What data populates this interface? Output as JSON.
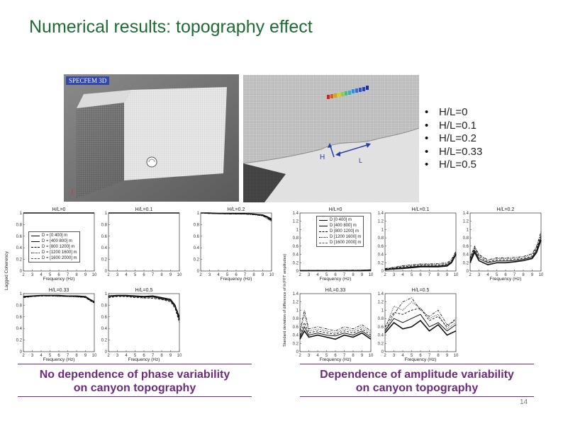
{
  "slide": {
    "title": "Numerical results: topography effect",
    "page_number": "14"
  },
  "mesh_left": {
    "software_label": "SPECFEM 3D"
  },
  "mesh_right": {
    "h_label": "H",
    "l_label": "L"
  },
  "bullets": [
    "H/L=0",
    "H/L=0.1",
    "H/L=0.2",
    "H/L=0.33",
    "H/L=0.5"
  ],
  "captions": {
    "left": [
      "No dependence of phase variability",
      "on canyon topography"
    ],
    "right": [
      "Dependence of amplitude variability",
      "on canyon topography"
    ]
  },
  "coherency_group": {
    "ylabel": "Lagged Coherency",
    "legend": [
      "D = [0 400] m",
      "D = [400 800] m",
      "D = [800 1200] m",
      "D = [1200 1600] m",
      "D = [1600 2000] m"
    ]
  },
  "amplitude_group": {
    "ylabel": "Standard deviation of difference of ln(FFT amplitudes)",
    "legend": [
      "D [0 400] m",
      "D [400 800] m",
      "D [800 1200] m",
      "D [1200 1600] m",
      "D [1600 2000] m"
    ]
  },
  "chart_data": [
    {
      "type": "line",
      "title": "H/L=0",
      "xlabel": "Frequency (Hz)",
      "ylabel": "Lagged Coherency",
      "x": [
        2,
        3,
        4,
        5,
        6,
        7,
        8,
        9,
        10
      ],
      "xlim": [
        2,
        10
      ],
      "ylim": [
        0,
        1
      ],
      "xticks": [
        "2",
        "3",
        "4",
        "5",
        "6",
        "7",
        "8",
        "9",
        "10"
      ],
      "yticks": [
        "0",
        "0.2",
        "0.4",
        "0.6",
        "0.8",
        "1"
      ],
      "series": [
        {
          "name": "D = [0 400] m",
          "values": [
            1,
            1,
            1,
            1,
            1,
            1,
            1,
            1,
            1
          ]
        },
        {
          "name": "D = [400 800] m",
          "values": [
            1,
            1,
            1,
            1,
            1,
            1,
            1,
            1,
            1
          ]
        },
        {
          "name": "D = [800 1200] m",
          "values": [
            1,
            1,
            1,
            1,
            1,
            1,
            1,
            1,
            1
          ]
        },
        {
          "name": "D = [1200 1600] m",
          "values": [
            1,
            1,
            1,
            1,
            1,
            1,
            1,
            1,
            1
          ]
        },
        {
          "name": "D = [1600 2000] m",
          "values": [
            1,
            1,
            1,
            1,
            1,
            1,
            1,
            1,
            1
          ]
        }
      ]
    },
    {
      "type": "line",
      "title": "H/L=0.1",
      "xlabel": "",
      "ylabel": "",
      "x": [
        2,
        3,
        4,
        5,
        6,
        7,
        8,
        9,
        10
      ],
      "xlim": [
        2,
        10
      ],
      "ylim": [
        0,
        1
      ],
      "xticks": [
        "2",
        "3",
        "4",
        "5",
        "6",
        "7",
        "8",
        "9",
        "10"
      ],
      "yticks": [
        "0",
        "0.2",
        "0.4",
        "0.6",
        "0.8",
        "1"
      ],
      "series": [
        {
          "values": [
            1,
            1,
            1,
            1,
            1,
            1,
            1,
            1,
            1
          ]
        },
        {
          "values": [
            1,
            1,
            1,
            1,
            1,
            1,
            1,
            1,
            1
          ]
        },
        {
          "values": [
            1,
            1,
            1,
            1,
            1,
            1,
            1,
            1,
            1
          ]
        },
        {
          "values": [
            1,
            1,
            1,
            1,
            1,
            1,
            1,
            1,
            1
          ]
        },
        {
          "values": [
            1,
            1,
            1,
            1,
            1,
            1,
            1,
            1,
            1
          ]
        }
      ]
    },
    {
      "type": "line",
      "title": "H/L=0.2",
      "xlabel": "Frequency (Hz)",
      "ylabel": "",
      "x": [
        2,
        3,
        4,
        5,
        6,
        7,
        8,
        9,
        9.5,
        10
      ],
      "xlim": [
        2,
        10
      ],
      "ylim": [
        0,
        1
      ],
      "xticks": [
        "2",
        "3",
        "4",
        "5",
        "6",
        "7",
        "8",
        "9",
        "10"
      ],
      "yticks": [
        "0",
        "0.2",
        "0.4",
        "0.6",
        "0.8",
        "1"
      ],
      "series": [
        {
          "values": [
            1,
            1,
            0.99,
            0.99,
            0.99,
            0.99,
            0.98,
            0.96,
            0.93,
            0.88
          ]
        },
        {
          "values": [
            1,
            1,
            0.99,
            0.99,
            0.99,
            0.99,
            0.98,
            0.97,
            0.94,
            0.9
          ]
        },
        {
          "values": [
            1,
            0.99,
            0.99,
            0.99,
            0.99,
            0.98,
            0.98,
            0.96,
            0.92,
            0.87
          ]
        },
        {
          "values": [
            1,
            0.99,
            0.99,
            0.99,
            0.98,
            0.98,
            0.97,
            0.95,
            0.9,
            0.85
          ]
        },
        {
          "values": [
            1,
            0.99,
            0.99,
            0.98,
            0.98,
            0.98,
            0.97,
            0.95,
            0.91,
            0.86
          ]
        }
      ]
    },
    {
      "type": "line",
      "title": "H/L=0.33",
      "xlabel": "Frequency (Hz)",
      "ylabel": "",
      "x": [
        2,
        3,
        4,
        5,
        6,
        7,
        8,
        9,
        9.5,
        10
      ],
      "xlim": [
        2,
        10
      ],
      "ylim": [
        0,
        1
      ],
      "xticks": [
        "2",
        "3",
        "4",
        "5",
        "6",
        "7",
        "8",
        "9",
        "10"
      ],
      "yticks": [
        "0",
        "0.2",
        "0.4",
        "0.6",
        "0.8",
        "1"
      ],
      "series": [
        {
          "values": [
            0.95,
            0.96,
            0.97,
            0.97,
            0.97,
            0.96,
            0.96,
            0.95,
            0.9,
            0.86
          ]
        },
        {
          "values": [
            0.94,
            0.96,
            0.97,
            0.97,
            0.96,
            0.96,
            0.95,
            0.94,
            0.89,
            0.85
          ]
        },
        {
          "values": [
            0.93,
            0.95,
            0.96,
            0.96,
            0.96,
            0.95,
            0.95,
            0.93,
            0.88,
            0.84
          ]
        },
        {
          "values": [
            0.93,
            0.95,
            0.96,
            0.96,
            0.95,
            0.95,
            0.94,
            0.93,
            0.88,
            0.83
          ]
        },
        {
          "values": [
            0.94,
            0.95,
            0.96,
            0.96,
            0.96,
            0.95,
            0.95,
            0.94,
            0.89,
            0.85
          ]
        }
      ]
    },
    {
      "type": "line",
      "title": "H/L=0.5",
      "xlabel": "Frequency (Hz)",
      "ylabel": "",
      "x": [
        2,
        3,
        4,
        5,
        6,
        7,
        8,
        9,
        9.5,
        10
      ],
      "xlim": [
        2,
        10
      ],
      "ylim": [
        0,
        1
      ],
      "xticks": [
        "2",
        "3",
        "4",
        "5",
        "6",
        "7",
        "8",
        "9",
        "10"
      ],
      "yticks": [
        "0",
        "0.2",
        "0.4",
        "0.6",
        "0.8",
        "1"
      ],
      "series": [
        {
          "values": [
            0.96,
            0.97,
            0.97,
            0.96,
            0.95,
            0.96,
            0.93,
            0.9,
            0.8,
            0.55
          ]
        },
        {
          "values": [
            0.95,
            0.96,
            0.96,
            0.95,
            0.94,
            0.95,
            0.91,
            0.88,
            0.78,
            0.6
          ]
        },
        {
          "values": [
            0.93,
            0.95,
            0.95,
            0.93,
            0.93,
            0.92,
            0.9,
            0.86,
            0.75,
            0.5
          ]
        },
        {
          "values": [
            0.94,
            0.96,
            0.95,
            0.94,
            0.92,
            0.93,
            0.9,
            0.87,
            0.76,
            0.58
          ]
        },
        {
          "values": [
            0.95,
            0.96,
            0.96,
            0.95,
            0.94,
            0.94,
            0.92,
            0.89,
            0.8,
            0.62
          ]
        }
      ]
    },
    {
      "type": "line",
      "title": "H/L=0",
      "xlabel": "Frequency (Hz)",
      "ylabel": "Standard deviation of difference of ln(FFT amplitudes)",
      "x": [
        2,
        3,
        4,
        5,
        6,
        7,
        8,
        9,
        10
      ],
      "xlim": [
        2,
        10
      ],
      "ylim": [
        0,
        1.4
      ],
      "xticks": [
        "2",
        "3",
        "4",
        "5",
        "6",
        "7",
        "8",
        "9",
        "10"
      ],
      "yticks": [
        "0",
        "0.2",
        "0.4",
        "0.6",
        "0.8",
        "1",
        "1.2",
        "1.4"
      ],
      "series": [
        {
          "name": "D [0 400] m",
          "values": [
            0.01,
            0.01,
            0.01,
            0.01,
            0.01,
            0.01,
            0.01,
            0.01,
            0.02
          ]
        },
        {
          "name": "D [400 800] m",
          "values": [
            0.01,
            0.01,
            0.01,
            0.01,
            0.01,
            0.01,
            0.01,
            0.01,
            0.02
          ]
        },
        {
          "name": "D [800 1200] m",
          "values": [
            0.01,
            0.01,
            0.01,
            0.01,
            0.01,
            0.01,
            0.01,
            0.02,
            0.02
          ]
        },
        {
          "name": "D [1200 1600] m",
          "values": [
            0.01,
            0.01,
            0.01,
            0.01,
            0.01,
            0.01,
            0.02,
            0.02,
            0.03
          ]
        },
        {
          "name": "D [1600 2000] m",
          "values": [
            0.01,
            0.01,
            0.01,
            0.01,
            0.01,
            0.02,
            0.02,
            0.02,
            0.03
          ]
        }
      ]
    },
    {
      "type": "line",
      "title": "H/L=0.1",
      "xlabel": "",
      "ylabel": "",
      "x": [
        2,
        3,
        4,
        5,
        6,
        7,
        8,
        9,
        9.5,
        10
      ],
      "xlim": [
        2,
        10
      ],
      "ylim": [
        0,
        1.4
      ],
      "xticks": [
        "2",
        "3",
        "4",
        "5",
        "6",
        "7",
        "8",
        "9",
        "10"
      ],
      "yticks": [
        "0",
        "0.2",
        "0.4",
        "0.6",
        "0.8",
        "1",
        "1.2",
        "1.4"
      ],
      "series": [
        {
          "values": [
            0.03,
            0.05,
            0.06,
            0.08,
            0.1,
            0.1,
            0.1,
            0.12,
            0.2,
            0.4
          ]
        },
        {
          "values": [
            0.04,
            0.06,
            0.08,
            0.1,
            0.12,
            0.12,
            0.12,
            0.14,
            0.22,
            0.42
          ]
        },
        {
          "values": [
            0.05,
            0.07,
            0.1,
            0.12,
            0.14,
            0.14,
            0.14,
            0.16,
            0.24,
            0.44
          ]
        },
        {
          "values": [
            0.06,
            0.08,
            0.12,
            0.14,
            0.16,
            0.16,
            0.16,
            0.18,
            0.26,
            0.46
          ]
        },
        {
          "values": [
            0.06,
            0.09,
            0.13,
            0.15,
            0.17,
            0.17,
            0.18,
            0.2,
            0.28,
            0.48
          ]
        }
      ]
    },
    {
      "type": "line",
      "title": "H/L=0.2",
      "xlabel": "Frequency (Hz)",
      "ylabel": "",
      "x": [
        2,
        2.5,
        3,
        4,
        5,
        6,
        7,
        8,
        9,
        9.5,
        10
      ],
      "xlim": [
        2,
        10
      ],
      "ylim": [
        0,
        1.4
      ],
      "xticks": [
        "2",
        "3",
        "4",
        "5",
        "6",
        "7",
        "8",
        "9",
        "10"
      ],
      "yticks": [
        "0",
        "0.2",
        "0.4",
        "0.6",
        "0.8",
        "1",
        "1.2",
        "1.4"
      ],
      "series": [
        {
          "values": [
            0.2,
            0.45,
            0.25,
            0.15,
            0.2,
            0.2,
            0.22,
            0.25,
            0.3,
            0.45,
            0.75
          ]
        },
        {
          "values": [
            0.25,
            0.5,
            0.3,
            0.2,
            0.24,
            0.24,
            0.25,
            0.28,
            0.33,
            0.5,
            0.8
          ]
        },
        {
          "values": [
            0.3,
            0.55,
            0.35,
            0.22,
            0.27,
            0.27,
            0.28,
            0.3,
            0.36,
            0.55,
            0.85
          ]
        },
        {
          "values": [
            0.3,
            0.58,
            0.38,
            0.25,
            0.3,
            0.3,
            0.3,
            0.33,
            0.4,
            0.58,
            0.9
          ]
        },
        {
          "values": [
            0.32,
            0.6,
            0.4,
            0.27,
            0.32,
            0.32,
            0.33,
            0.35,
            0.42,
            0.6,
            0.95
          ]
        }
      ]
    },
    {
      "type": "line",
      "title": "H/L=0.33",
      "xlabel": "Frequency (Hz)",
      "ylabel": "",
      "x": [
        2,
        2.5,
        3,
        4,
        5,
        6,
        7,
        8,
        9,
        10
      ],
      "xlim": [
        2,
        10
      ],
      "ylim": [
        0,
        1.4
      ],
      "xticks": [
        "2",
        "3",
        "4",
        "5",
        "6",
        "7",
        "8",
        "9",
        "10"
      ],
      "yticks": [
        "0",
        "0.2",
        "0.4",
        "0.6",
        "0.8",
        "1",
        "1.2",
        "1.4"
      ],
      "series": [
        {
          "values": [
            0.3,
            0.5,
            0.35,
            0.4,
            0.35,
            0.3,
            0.4,
            0.35,
            0.45,
            0.3
          ]
        },
        {
          "values": [
            0.35,
            0.6,
            0.4,
            0.45,
            0.4,
            0.38,
            0.45,
            0.4,
            0.5,
            0.35
          ]
        },
        {
          "values": [
            0.4,
            0.7,
            0.45,
            0.5,
            0.45,
            0.42,
            0.5,
            0.45,
            0.55,
            0.4
          ]
        },
        {
          "values": [
            0.45,
            0.9,
            0.5,
            0.55,
            0.5,
            0.45,
            0.55,
            0.5,
            0.6,
            0.45
          ]
        },
        {
          "values": [
            0.5,
            1.0,
            0.55,
            0.6,
            0.55,
            0.5,
            0.6,
            0.55,
            0.65,
            0.5
          ]
        }
      ]
    },
    {
      "type": "line",
      "title": "H/L=0.5",
      "xlabel": "Frequency (Hz)",
      "ylabel": "",
      "x": [
        2,
        3,
        4,
        5,
        6,
        7,
        8,
        9,
        10
      ],
      "xlim": [
        2,
        10
      ],
      "ylim": [
        0,
        1.4
      ],
      "xticks": [
        "2",
        "3",
        "4",
        "5",
        "6",
        "7",
        "8",
        "9",
        "10"
      ],
      "yticks": [
        "0",
        "0.2",
        "0.4",
        "0.6",
        "0.8",
        "1",
        "1.2",
        "1.4"
      ],
      "series": [
        {
          "values": [
            0.45,
            0.7,
            0.55,
            0.6,
            0.75,
            0.5,
            0.65,
            0.4,
            0.5
          ]
        },
        {
          "values": [
            0.5,
            0.8,
            0.7,
            0.8,
            0.9,
            0.6,
            0.7,
            0.5,
            0.65
          ]
        },
        {
          "values": [
            0.6,
            0.95,
            0.9,
            1.0,
            1.05,
            0.75,
            0.85,
            0.6,
            0.8
          ]
        },
        {
          "values": [
            0.55,
            1.1,
            1.0,
            1.2,
            1.05,
            0.8,
            0.9,
            0.55,
            0.7
          ]
        },
        {
          "values": [
            0.5,
            0.9,
            1.2,
            1.3,
            1.0,
            0.85,
            1.0,
            0.65,
            0.75
          ]
        }
      ]
    }
  ]
}
